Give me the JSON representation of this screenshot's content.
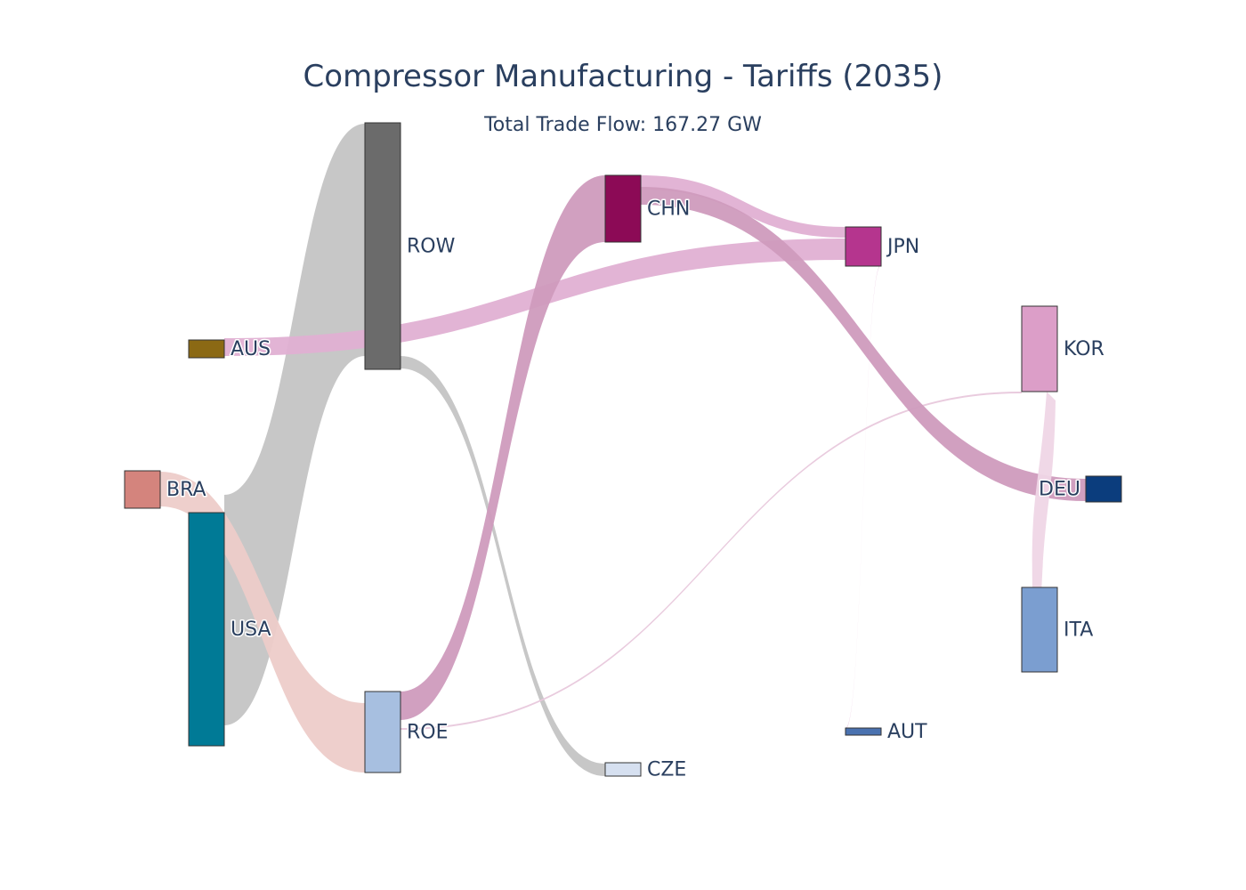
{
  "title": "Compressor Manufacturing - Tariffs (2035)",
  "subtitle": "Total Trade Flow: 167.27 GW",
  "chart_data": {
    "type": "sankey",
    "nodes": [
      {
        "id": "BRA",
        "label": "BRA",
        "color": "#d4847d"
      },
      {
        "id": "AUS",
        "label": "AUS",
        "color": "#8b6914"
      },
      {
        "id": "USA",
        "label": "USA",
        "color": "#007a96"
      },
      {
        "id": "ROW",
        "label": "ROW",
        "color": "#6b6b6b"
      },
      {
        "id": "ROE",
        "label": "ROE",
        "color": "#a7bfe0"
      },
      {
        "id": "CHN",
        "label": "CHN",
        "color": "#8c0a56"
      },
      {
        "id": "CZE",
        "label": "CZE",
        "color": "#d6e0f0"
      },
      {
        "id": "JPN",
        "label": "JPN",
        "color": "#b5358e"
      },
      {
        "id": "AUT",
        "label": "AUT",
        "color": "#4a72b0"
      },
      {
        "id": "KOR",
        "label": "KOR",
        "color": "#dc9ec8"
      },
      {
        "id": "DEU",
        "label": "DEU",
        "color": "#0b3d7d"
      },
      {
        "id": "ITA",
        "label": "ITA",
        "color": "#7b9ed0"
      }
    ],
    "links": [
      {
        "source": "USA",
        "target": "ROW",
        "value": 46.2,
        "color": "#c4c4c4"
      },
      {
        "source": "AUS",
        "target": "JPN",
        "value": 3.0,
        "color": "#e0b0d3"
      },
      {
        "source": "BRA",
        "target": "ROE",
        "value": 7.0,
        "color": "#edccc9"
      },
      {
        "source": "ROW",
        "target": "CZE",
        "value": 2.6,
        "color": "#c4c4c4"
      },
      {
        "source": "ROE",
        "target": "CHN",
        "value": 13.2,
        "color": "#cf9bbd"
      },
      {
        "source": "ROE",
        "target": "KOR",
        "value": 0.4,
        "color": "#e8c8dc"
      },
      {
        "source": "CHN",
        "target": "JPN",
        "value": 2.9,
        "color": "#e0b0d3"
      },
      {
        "source": "CHN",
        "target": "DEU",
        "value": 4.4,
        "color": "#cf9bbd"
      },
      {
        "source": "JPN",
        "target": "AUT",
        "value": 0.1,
        "color": "#e0b0d3"
      },
      {
        "source": "KOR",
        "target": "ITA",
        "value": 1.4,
        "color": "#efd6e6"
      }
    ]
  }
}
